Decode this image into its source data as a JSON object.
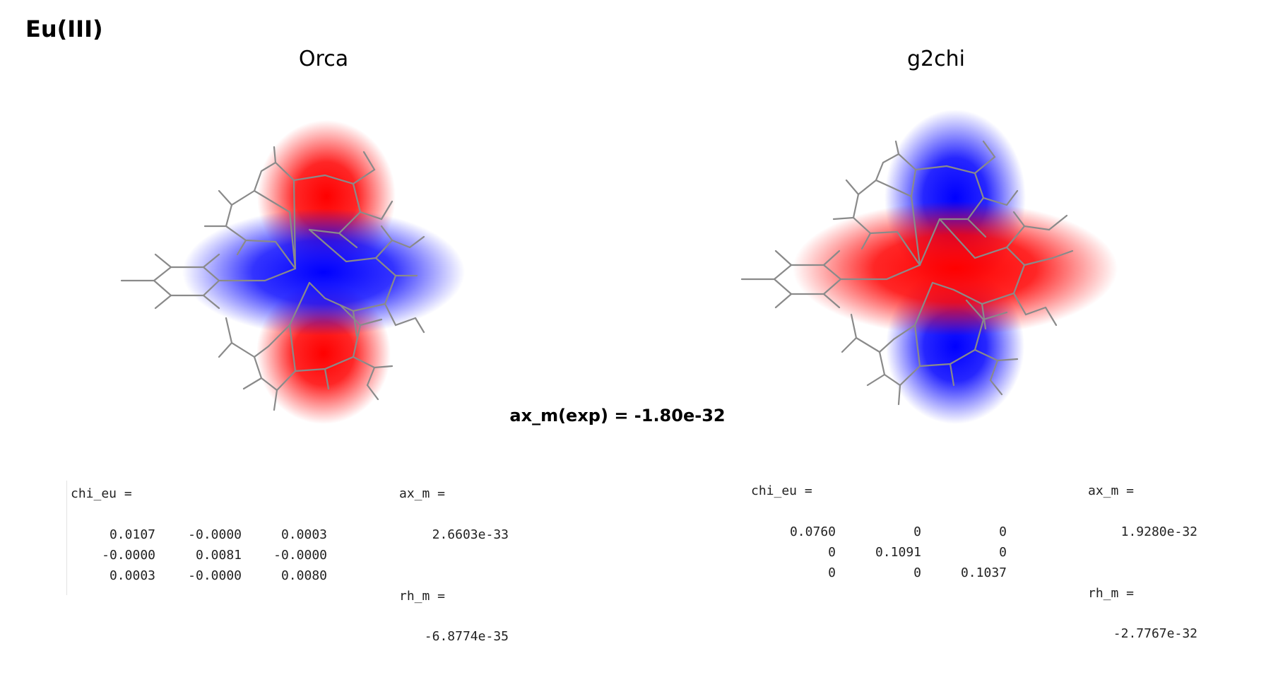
{
  "heading": "Eu(III)",
  "center_note": "ax_m(exp) = -1.80e-32",
  "panels": {
    "left": {
      "title": "Orca",
      "chi_label": "chi_eu =",
      "chi_matrix": [
        [
          "0.0107",
          "-0.0000",
          "0.0003"
        ],
        [
          "-0.0000",
          "0.0081",
          "-0.0000"
        ],
        [
          "0.0003",
          "-0.0000",
          "0.0080"
        ]
      ],
      "ax_label": "ax_m =",
      "ax_value": "2.6603e-33",
      "rh_label": "rh_m =",
      "rh_value": "-6.8774e-35"
    },
    "right": {
      "title": "g2chi",
      "chi_label": "chi_eu =",
      "chi_matrix": [
        [
          "0.0760",
          "0",
          "0"
        ],
        [
          "0",
          "0.1091",
          "0"
        ],
        [
          "0",
          "0",
          "0.1037"
        ]
      ],
      "ax_label": "ax_m =",
      "ax_value": "1.9280e-32",
      "rh_label": "rh_m =",
      "rh_value": "-2.7767e-32"
    }
  },
  "colors": {
    "positive_lobe": "#ff0000",
    "negative_lobe": "#0000ff",
    "bond": "#8a8a8a"
  }
}
